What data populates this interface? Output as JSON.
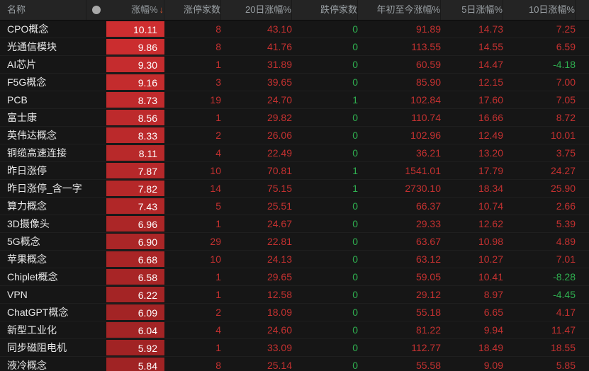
{
  "colors": {
    "up_text": "#c43130",
    "down_text": "#2fb050",
    "bar_text": "#ffffff",
    "bar_max": "#ce2e30",
    "bar_min": "#a02324",
    "header_bg": "#242424",
    "body_bg": "#161616",
    "sort_arrow_color": "#c8502e",
    "dot_color": "#a9a9a9"
  },
  "table": {
    "header": {
      "name": "名称",
      "dot_icon": "●",
      "pct": "涨幅%",
      "sort_arrow": "↓",
      "limit_up": "涨停家数",
      "d20": "20日涨幅%",
      "limit_down": "跌停家数",
      "ytd": "年初至今涨幅%",
      "d5": "5日涨幅%",
      "d10": "10日涨幅%"
    },
    "rows": [
      {
        "name": "CPO概念",
        "pct": "10.11",
        "bar": "#ce2e30",
        "limit_up": "8",
        "d20": "43.10",
        "limit_down": "0",
        "ytd": "91.89",
        "d5": "14.73",
        "d10": "7.25"
      },
      {
        "name": "光通信模块",
        "pct": "9.86",
        "bar": "#cb2d2f",
        "limit_up": "8",
        "d20": "41.76",
        "limit_down": "0",
        "ytd": "113.55",
        "d5": "14.55",
        "d10": "6.59"
      },
      {
        "name": "AI芯片",
        "pct": "9.30",
        "bar": "#c52c2e",
        "limit_up": "1",
        "d20": "31.89",
        "limit_down": "0",
        "ytd": "60.59",
        "d5": "14.47",
        "d10": "-4.18"
      },
      {
        "name": "F5G概念",
        "pct": "9.16",
        "bar": "#c42c2d",
        "limit_up": "3",
        "d20": "39.65",
        "limit_down": "0",
        "ytd": "85.90",
        "d5": "12.15",
        "d10": "7.00"
      },
      {
        "name": "PCB",
        "pct": "8.73",
        "bar": "#bf2a2c",
        "limit_up": "19",
        "d20": "24.70",
        "limit_down": "1",
        "ytd": "102.84",
        "d5": "17.60",
        "d10": "7.05"
      },
      {
        "name": "富士康",
        "pct": "8.56",
        "bar": "#bd2a2c",
        "limit_up": "1",
        "d20": "29.82",
        "limit_down": "0",
        "ytd": "110.74",
        "d5": "16.66",
        "d10": "8.72"
      },
      {
        "name": "英伟达概念",
        "pct": "8.33",
        "bar": "#bb292b",
        "limit_up": "2",
        "d20": "26.06",
        "limit_down": "0",
        "ytd": "102.96",
        "d5": "12.49",
        "d10": "10.01"
      },
      {
        "name": "铜缆高速连接",
        "pct": "8.11",
        "bar": "#b8292a",
        "limit_up": "4",
        "d20": "22.49",
        "limit_down": "0",
        "ytd": "36.21",
        "d5": "13.20",
        "d10": "3.75"
      },
      {
        "name": "昨日涨停",
        "pct": "7.87",
        "bar": "#b6282a",
        "limit_up": "10",
        "d20": "70.81",
        "limit_down": "1",
        "ytd": "1541.01",
        "d5": "17.79",
        "d10": "24.27"
      },
      {
        "name": "昨日涨停_含一字",
        "pct": "7.82",
        "bar": "#b52829",
        "limit_up": "14",
        "d20": "75.15",
        "limit_down": "1",
        "ytd": "2730.10",
        "d5": "18.34",
        "d10": "25.90"
      },
      {
        "name": "算力概念",
        "pct": "7.43",
        "bar": "#b12728",
        "limit_up": "5",
        "d20": "25.51",
        "limit_down": "0",
        "ytd": "66.37",
        "d5": "10.74",
        "d10": "2.66"
      },
      {
        "name": "3D摄像头",
        "pct": "6.96",
        "bar": "#ac2627",
        "limit_up": "1",
        "d20": "24.67",
        "limit_down": "0",
        "ytd": "29.33",
        "d5": "12.62",
        "d10": "5.39"
      },
      {
        "name": "5G概念",
        "pct": "6.90",
        "bar": "#ab2627",
        "limit_up": "29",
        "d20": "22.81",
        "limit_down": "0",
        "ytd": "63.67",
        "d5": "10.98",
        "d10": "4.89"
      },
      {
        "name": "苹果概念",
        "pct": "6.68",
        "bar": "#a92526",
        "limit_up": "10",
        "d20": "24.13",
        "limit_down": "0",
        "ytd": "63.12",
        "d5": "10.27",
        "d10": "7.01"
      },
      {
        "name": "Chiplet概念",
        "pct": "6.58",
        "bar": "#a82526",
        "limit_up": "1",
        "d20": "29.65",
        "limit_down": "0",
        "ytd": "59.05",
        "d5": "10.41",
        "d10": "-8.28"
      },
      {
        "name": "VPN",
        "pct": "6.22",
        "bar": "#a42425",
        "limit_up": "1",
        "d20": "12.58",
        "limit_down": "0",
        "ytd": "29.12",
        "d5": "8.97",
        "d10": "-4.45"
      },
      {
        "name": "ChatGPT概念",
        "pct": "6.09",
        "bar": "#a32425",
        "limit_up": "2",
        "d20": "18.09",
        "limit_down": "0",
        "ytd": "55.18",
        "d5": "6.65",
        "d10": "4.17"
      },
      {
        "name": "新型工业化",
        "pct": "6.04",
        "bar": "#a22425",
        "limit_up": "4",
        "d20": "24.60",
        "limit_down": "0",
        "ytd": "81.22",
        "d5": "9.94",
        "d10": "11.47"
      },
      {
        "name": "同步磁阻电机",
        "pct": "5.92",
        "bar": "#a12324",
        "limit_up": "1",
        "d20": "33.09",
        "limit_down": "0",
        "ytd": "112.77",
        "d5": "18.49",
        "d10": "18.55"
      },
      {
        "name": "液冷概念",
        "pct": "5.84",
        "bar": "#a02324",
        "limit_up": "8",
        "d20": "25.14",
        "limit_down": "0",
        "ytd": "55.58",
        "d5": "9.09",
        "d10": "5.85"
      }
    ]
  }
}
